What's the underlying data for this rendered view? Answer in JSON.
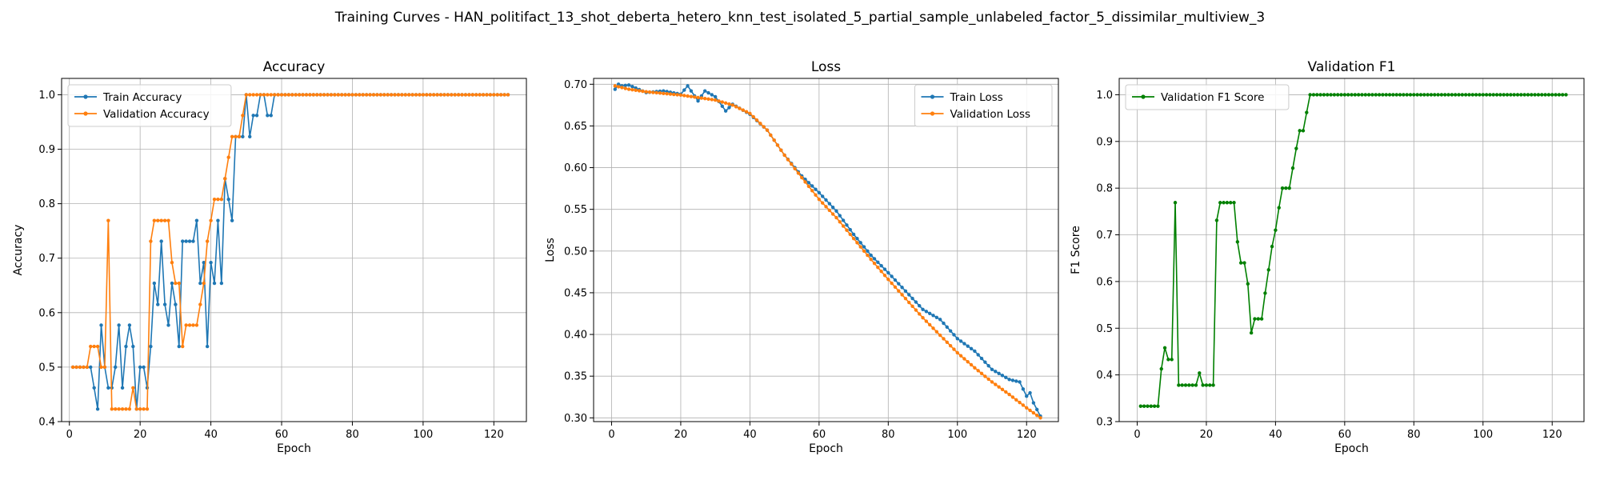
{
  "figure": {
    "suptitle": "Training Curves - HAN_politifact_13_shot_deberta_hetero_knn_test_isolated_5_partial_sample_unlabeled_factor_5_dissimilar_multiview_3"
  },
  "chart_data": [
    {
      "type": "line",
      "title": "Accuracy",
      "xlabel": "Epoch",
      "ylabel": "Accuracy",
      "xlim": [
        -2.2,
        129.2
      ],
      "ylim": [
        0.4,
        1.03
      ],
      "xticks": [
        0,
        20,
        40,
        60,
        80,
        100,
        120
      ],
      "yticks": [
        0.4,
        0.5,
        0.6,
        0.7,
        0.8,
        0.9,
        1.0
      ],
      "ytick_labels": [
        "0.4",
        "0.5",
        "0.6",
        "0.7",
        "0.8",
        "0.9",
        "1.0"
      ],
      "grid": true,
      "legend_position": "upper-left",
      "epochs_from": 1,
      "epochs_to": 124,
      "series": [
        {
          "name": "Train Accuracy",
          "color": "#1f77b4",
          "key_points": [
            [
              1,
              0.5
            ],
            [
              6,
              0.5
            ],
            [
              7,
              0.462
            ],
            [
              8,
              0.423
            ],
            [
              9,
              0.577
            ],
            [
              10,
              0.5
            ],
            [
              11,
              0.462
            ],
            [
              12,
              0.462
            ],
            [
              13,
              0.5
            ],
            [
              14,
              0.577
            ],
            [
              15,
              0.462
            ],
            [
              16,
              0.538
            ],
            [
              17,
              0.577
            ],
            [
              18,
              0.538
            ],
            [
              19,
              0.423
            ],
            [
              20,
              0.5
            ],
            [
              21,
              0.5
            ],
            [
              22,
              0.462
            ],
            [
              23,
              0.538
            ],
            [
              24,
              0.654
            ],
            [
              25,
              0.615
            ],
            [
              26,
              0.731
            ],
            [
              27,
              0.615
            ],
            [
              28,
              0.577
            ],
            [
              29,
              0.654
            ],
            [
              30,
              0.615
            ],
            [
              31,
              0.538
            ],
            [
              32,
              0.731
            ],
            [
              33,
              0.731
            ],
            [
              34,
              0.731
            ],
            [
              35,
              0.731
            ],
            [
              36,
              0.769
            ],
            [
              37,
              0.654
            ],
            [
              38,
              0.692
            ],
            [
              39,
              0.538
            ],
            [
              40,
              0.692
            ],
            [
              41,
              0.654
            ],
            [
              42,
              0.769
            ],
            [
              43,
              0.654
            ],
            [
              44,
              0.846
            ],
            [
              45,
              0.808
            ],
            [
              46,
              0.769
            ],
            [
              47,
              0.923
            ],
            [
              48,
              0.923
            ],
            [
              49,
              0.923
            ],
            [
              50,
              1.0
            ],
            [
              51,
              0.923
            ],
            [
              52,
              0.962
            ],
            [
              53,
              0.962
            ],
            [
              54,
              1.0
            ],
            [
              55,
              1.0
            ],
            [
              56,
              0.962
            ],
            [
              57,
              0.962
            ],
            [
              58,
              1.0
            ],
            [
              124,
              1.0
            ]
          ]
        },
        {
          "name": "Validation Accuracy",
          "color": "#ff7f0e",
          "key_points": [
            [
              1,
              0.5
            ],
            [
              5,
              0.5
            ],
            [
              6,
              0.538
            ],
            [
              7,
              0.538
            ],
            [
              8,
              0.538
            ],
            [
              9,
              0.5
            ],
            [
              10,
              0.5
            ],
            [
              11,
              0.769
            ],
            [
              12,
              0.423
            ],
            [
              17,
              0.423
            ],
            [
              18,
              0.462
            ],
            [
              19,
              0.423
            ],
            [
              22,
              0.423
            ],
            [
              23,
              0.731
            ],
            [
              24,
              0.769
            ],
            [
              28,
              0.769
            ],
            [
              29,
              0.692
            ],
            [
              30,
              0.654
            ],
            [
              31,
              0.654
            ],
            [
              32,
              0.538
            ],
            [
              33,
              0.577
            ],
            [
              36,
              0.577
            ],
            [
              37,
              0.615
            ],
            [
              38,
              0.654
            ],
            [
              39,
              0.731
            ],
            [
              40,
              0.769
            ],
            [
              41,
              0.808
            ],
            [
              43,
              0.808
            ],
            [
              44,
              0.846
            ],
            [
              45,
              0.885
            ],
            [
              46,
              0.923
            ],
            [
              48,
              0.923
            ],
            [
              49,
              0.962
            ],
            [
              50,
              1.0
            ],
            [
              124,
              1.0
            ]
          ]
        }
      ]
    },
    {
      "type": "line",
      "title": "Loss",
      "xlabel": "Epoch",
      "ylabel": "Loss",
      "xlim": [
        -5.2,
        129.2
      ],
      "ylim": [
        0.2955,
        0.707
      ],
      "xticks": [
        0,
        20,
        40,
        60,
        80,
        100,
        120
      ],
      "yticks": [
        0.3,
        0.35,
        0.4,
        0.45,
        0.5,
        0.55,
        0.6,
        0.65,
        0.7
      ],
      "ytick_labels": [
        "0.30",
        "0.35",
        "0.40",
        "0.45",
        "0.50",
        "0.55",
        "0.60",
        "0.65",
        "0.70"
      ],
      "grid": true,
      "legend_position": "upper-right",
      "epochs_from": 1,
      "epochs_to": 124,
      "series": [
        {
          "name": "Train Loss",
          "color": "#1f77b4",
          "key_points": [
            [
              1,
              0.694
            ],
            [
              2,
              0.7
            ],
            [
              3,
              0.698
            ],
            [
              5,
              0.699
            ],
            [
              10,
              0.69
            ],
            [
              15,
              0.692
            ],
            [
              20,
              0.688
            ],
            [
              22,
              0.698
            ],
            [
              25,
              0.68
            ],
            [
              27,
              0.692
            ],
            [
              30,
              0.685
            ],
            [
              33,
              0.668
            ],
            [
              35,
              0.676
            ],
            [
              40,
              0.664
            ],
            [
              45,
              0.645
            ],
            [
              50,
              0.615
            ],
            [
              55,
              0.59
            ],
            [
              60,
              0.57
            ],
            [
              65,
              0.548
            ],
            [
              70,
              0.52
            ],
            [
              75,
              0.495
            ],
            [
              80,
              0.474
            ],
            [
              85,
              0.452
            ],
            [
              90,
              0.43
            ],
            [
              95,
              0.418
            ],
            [
              100,
              0.395
            ],
            [
              105,
              0.38
            ],
            [
              110,
              0.358
            ],
            [
              115,
              0.346
            ],
            [
              118,
              0.343
            ],
            [
              120,
              0.326
            ],
            [
              121,
              0.33
            ],
            [
              122,
              0.318
            ],
            [
              124,
              0.302
            ]
          ]
        },
        {
          "name": "Validation Loss",
          "color": "#ff7f0e",
          "key_points": [
            [
              1,
              0.698
            ],
            [
              5,
              0.694
            ],
            [
              10,
              0.691
            ],
            [
              20,
              0.687
            ],
            [
              30,
              0.681
            ],
            [
              35,
              0.675
            ],
            [
              40,
              0.665
            ],
            [
              45,
              0.645
            ],
            [
              50,
              0.615
            ],
            [
              55,
              0.588
            ],
            [
              60,
              0.562
            ],
            [
              65,
              0.54
            ],
            [
              70,
              0.515
            ],
            [
              75,
              0.49
            ],
            [
              80,
              0.466
            ],
            [
              85,
              0.443
            ],
            [
              90,
              0.42
            ],
            [
              95,
              0.399
            ],
            [
              100,
              0.378
            ],
            [
              105,
              0.36
            ],
            [
              110,
              0.343
            ],
            [
              115,
              0.328
            ],
            [
              120,
              0.312
            ],
            [
              124,
              0.3
            ]
          ]
        }
      ]
    },
    {
      "type": "line",
      "title": "Validation F1",
      "xlabel": "Epoch",
      "ylabel": "F1 Score",
      "xlim": [
        -5.2,
        129.2
      ],
      "ylim": [
        0.3,
        1.035
      ],
      "xticks": [
        0,
        20,
        40,
        60,
        80,
        100,
        120
      ],
      "yticks": [
        0.3,
        0.4,
        0.5,
        0.6,
        0.7,
        0.8,
        0.9,
        1.0
      ],
      "ytick_labels": [
        "0.3",
        "0.4",
        "0.5",
        "0.6",
        "0.7",
        "0.8",
        "0.9",
        "1.0"
      ],
      "grid": true,
      "legend_position": "upper-left",
      "epochs_from": 1,
      "epochs_to": 124,
      "series": [
        {
          "name": "Validation F1 Score",
          "color": "#008000",
          "key_points": [
            [
              1,
              0.333
            ],
            [
              6,
              0.333
            ],
            [
              7,
              0.413
            ],
            [
              8,
              0.458
            ],
            [
              9,
              0.433
            ],
            [
              10,
              0.433
            ],
            [
              11,
              0.769
            ],
            [
              12,
              0.378
            ],
            [
              17,
              0.378
            ],
            [
              18,
              0.404
            ],
            [
              19,
              0.378
            ],
            [
              22,
              0.378
            ],
            [
              23,
              0.731
            ],
            [
              24,
              0.769
            ],
            [
              28,
              0.769
            ],
            [
              29,
              0.685
            ],
            [
              30,
              0.64
            ],
            [
              31,
              0.64
            ],
            [
              32,
              0.595
            ],
            [
              33,
              0.49
            ],
            [
              34,
              0.52
            ],
            [
              36,
              0.52
            ],
            [
              37,
              0.575
            ],
            [
              38,
              0.625
            ],
            [
              39,
              0.675
            ],
            [
              40,
              0.71
            ],
            [
              41,
              0.758
            ],
            [
              42,
              0.8
            ],
            [
              44,
              0.8
            ],
            [
              45,
              0.843
            ],
            [
              46,
              0.885
            ],
            [
              47,
              0.923
            ],
            [
              48,
              0.923
            ],
            [
              49,
              0.962
            ],
            [
              50,
              1.0
            ],
            [
              124,
              1.0
            ]
          ]
        }
      ]
    }
  ]
}
